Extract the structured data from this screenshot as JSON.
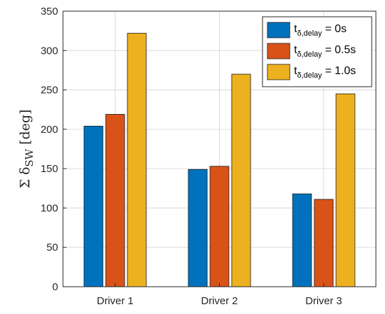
{
  "chart_data": {
    "type": "bar",
    "categories": [
      "Driver 1",
      "Driver 2",
      "Driver 3"
    ],
    "series": [
      {
        "name": "t_{δ,delay} = 0s",
        "legend_main": "t",
        "legend_sub": "δ,delay",
        "legend_tail": " = 0s",
        "color": "#0072BD",
        "values": [
          204,
          149,
          118
        ]
      },
      {
        "name": "t_{δ,delay} = 0.5s",
        "legend_main": "t",
        "legend_sub": "δ,delay",
        "legend_tail": " = 0.5s",
        "color": "#D95319",
        "values": [
          219,
          153,
          111
        ]
      },
      {
        "name": "t_{δ,delay} = 1.0s",
        "legend_main": "t",
        "legend_sub": "δ,delay",
        "legend_tail": " = 1.0s",
        "color": "#EDB120",
        "values": [
          322,
          270,
          245
        ]
      }
    ],
    "ylabel": "Σ δSW [deg]",
    "ylabel_parts": {
      "prefix": "Σ δ",
      "sub": "SW",
      "suffix": " [deg]"
    },
    "ylim": [
      0,
      350
    ],
    "yticks": [
      "0",
      "50",
      "100",
      "150",
      "200",
      "250",
      "300",
      "350"
    ],
    "grid": true,
    "legend_position": "top-right"
  }
}
